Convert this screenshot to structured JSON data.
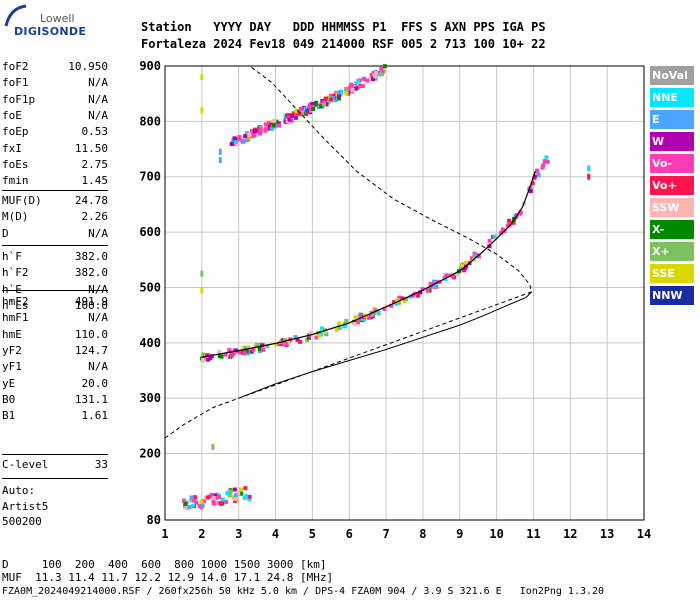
{
  "logo": {
    "line1": "Lowell",
    "line2": "DIGISONDE"
  },
  "header": {
    "row1": "Station   YYYY DAY   DDD HHMMSS P1  FFS S AXN PPS IGA PS",
    "row2": "Fortaleza 2024 Fev18 049 214000 RSF 005 2 713 100 10+ 22"
  },
  "params": {
    "group1": [
      {
        "k": "foF2",
        "v": "10.950"
      },
      {
        "k": "foF1",
        "v": "N/A"
      },
      {
        "k": "foF1p",
        "v": "N/A"
      },
      {
        "k": "foE",
        "v": "N/A"
      },
      {
        "k": "foEp",
        "v": "0.53"
      },
      {
        "k": "fxI",
        "v": "11.50"
      },
      {
        "k": "foEs",
        "v": "2.75"
      },
      {
        "k": "fmin",
        "v": "1.45"
      }
    ],
    "group2": [
      {
        "k": "MUF(D)",
        "v": "24.78"
      },
      {
        "k": "M(D)",
        "v": "2.26"
      },
      {
        "k": "D",
        "v": "N/A"
      }
    ],
    "group3": [
      {
        "k": "h`F",
        "v": "382.0"
      },
      {
        "k": "h`F2",
        "v": "382.0"
      },
      {
        "k": "h`E",
        "v": "N/A"
      },
      {
        "k": "h`Es",
        "v": "100.0"
      }
    ],
    "group4": [
      {
        "k": "hmF2",
        "v": "491.9"
      },
      {
        "k": "hmF1",
        "v": "N/A"
      },
      {
        "k": "hmE",
        "v": "110.0"
      },
      {
        "k": "yF2",
        "v": "124.7"
      },
      {
        "k": "yF1",
        "v": "N/A"
      },
      {
        "k": "yE",
        "v": "20.0"
      },
      {
        "k": "B0",
        "v": "131.1"
      },
      {
        "k": "B1",
        "v": "1.61"
      }
    ],
    "group5": [
      {
        "k": "C-level",
        "v": "33"
      }
    ],
    "auto": [
      "Auto:",
      "Artist5",
      "500200"
    ]
  },
  "legend": [
    {
      "label": "NoVal",
      "color": "#a0a0a0"
    },
    {
      "label": "NNE",
      "color": "#00e8ff"
    },
    {
      "label": "E",
      "color": "#4aa6ff"
    },
    {
      "label": "W",
      "color": "#b000b0"
    },
    {
      "label": "Vo-",
      "color": "#ff3cb4"
    },
    {
      "label": "Vo+",
      "color": "#ff1450"
    },
    {
      "label": "SSW",
      "color": "#ffb4b4"
    },
    {
      "label": "X-",
      "color": "#008800"
    },
    {
      "label": "X+",
      "color": "#7cc060"
    },
    {
      "label": "SSE",
      "color": "#d8d800"
    },
    {
      "label": "NNW",
      "color": "#1a2aa0"
    }
  ],
  "bottom": {
    "d_row": "D     100  200  400  600  800 1000 1500 3000 [km]",
    "muf_row": "MUF  11.3 11.4 11.7 12.2 12.9 14.0 17.1 24.8 [MHz]",
    "file_row": "FZA0M_2024049214000.RSF / 260fx256h 50 kHz 5.0 km / DPS-4 FZA0M 904 / 3.9 S 321.6 E   Ion2Png 1.3.20"
  },
  "chart_data": {
    "type": "scatter",
    "title": "",
    "xlabel": "",
    "ylabel": "",
    "xlim": [
      1,
      14
    ],
    "ylim": [
      80,
      900
    ],
    "x_ticks": [
      1,
      2,
      3,
      4,
      5,
      6,
      7,
      8,
      9,
      10,
      11,
      12,
      13,
      14
    ],
    "y_ticks": [
      80,
      200,
      300,
      400,
      500,
      600,
      700,
      800,
      900
    ],
    "grid": true,
    "legend_position": "right",
    "traces": [
      {
        "name": "F2 trace",
        "color_key": "Vo-",
        "points": [
          [
            2.0,
            372
          ],
          [
            2.5,
            378
          ],
          [
            3.0,
            384
          ],
          [
            3.5,
            391
          ],
          [
            4.0,
            398
          ],
          [
            4.5,
            406
          ],
          [
            5.0,
            414
          ],
          [
            5.5,
            424
          ],
          [
            6.0,
            436
          ],
          [
            6.5,
            450
          ],
          [
            7.0,
            465
          ],
          [
            7.5,
            480
          ],
          [
            8.0,
            495
          ],
          [
            8.5,
            510
          ],
          [
            9.0,
            530
          ],
          [
            9.5,
            560
          ],
          [
            9.9,
            585
          ],
          [
            10.2,
            605
          ],
          [
            10.5,
            625
          ],
          [
            10.8,
            655
          ],
          [
            11.0,
            695
          ],
          [
            11.2,
            715
          ],
          [
            11.4,
            735
          ]
        ]
      },
      {
        "name": "Second hop trace",
        "color_key": "Vo-",
        "points": [
          [
            2.8,
            760
          ],
          [
            3.2,
            772
          ],
          [
            3.6,
            785
          ],
          [
            4.0,
            796
          ],
          [
            4.5,
            810
          ],
          [
            5.0,
            825
          ],
          [
            5.5,
            840
          ],
          [
            6.0,
            858
          ],
          [
            6.5,
            875
          ],
          [
            7.0,
            895
          ]
        ]
      },
      {
        "name": "Es trace",
        "color_key": "W",
        "points": [
          [
            1.5,
            112
          ],
          [
            1.8,
            113
          ],
          [
            2.1,
            115
          ],
          [
            2.4,
            118
          ],
          [
            2.7,
            122
          ],
          [
            3.0,
            126
          ],
          [
            3.3,
            128
          ]
        ]
      }
    ],
    "fitted_trace": [
      [
        2.0,
        374
      ],
      [
        3,
        386
      ],
      [
        4,
        399
      ],
      [
        5,
        415
      ],
      [
        6,
        436
      ],
      [
        7,
        465
      ],
      [
        8,
        495
      ],
      [
        9,
        530
      ],
      [
        9.6,
        563
      ],
      [
        10.0,
        588
      ],
      [
        10.4,
        615
      ],
      [
        10.7,
        645
      ],
      [
        10.9,
        680
      ],
      [
        11.05,
        710
      ]
    ],
    "profile_solid": [
      [
        3,
        300
      ],
      [
        4,
        326
      ],
      [
        5,
        348
      ],
      [
        6,
        368
      ],
      [
        7,
        388
      ],
      [
        8,
        410
      ],
      [
        9,
        432
      ],
      [
        9.6,
        448
      ],
      [
        10.2,
        465
      ],
      [
        10.8,
        482
      ],
      [
        10.95,
        492
      ]
    ],
    "profile_dashed": [
      [
        1,
        228
      ],
      [
        1.5,
        252
      ],
      [
        2.3,
        283
      ],
      [
        3,
        300
      ],
      [
        10.95,
        492
      ],
      [
        10.9,
        505
      ],
      [
        10.6,
        530
      ],
      [
        10.0,
        560
      ],
      [
        9.2,
        590
      ],
      [
        8.3,
        620
      ],
      [
        7.2,
        660
      ],
      [
        6.2,
        710
      ],
      [
        5.3,
        770
      ],
      [
        4.6,
        820
      ],
      [
        3.9,
        870
      ],
      [
        3.3,
        900
      ]
    ]
  }
}
